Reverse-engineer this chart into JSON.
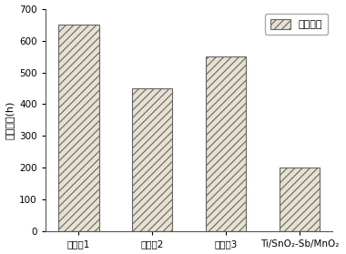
{
  "categories": [
    "实施例1",
    "实施例2",
    "实施例3",
    "Ti/SnO₂-Sb/MnO₂"
  ],
  "values": [
    650,
    450,
    550,
    200
  ],
  "bar_color": "#e8e0d0",
  "hatch": "////",
  "ylabel": "电极寿命(h)",
  "ylim": [
    0,
    700
  ],
  "yticks": [
    0,
    100,
    200,
    300,
    400,
    500,
    600,
    700
  ],
  "legend_label": "电极寿命",
  "background_color": "#ffffff",
  "bar_width": 0.55,
  "edge_color": "#666666",
  "hatch_color": "#888888"
}
